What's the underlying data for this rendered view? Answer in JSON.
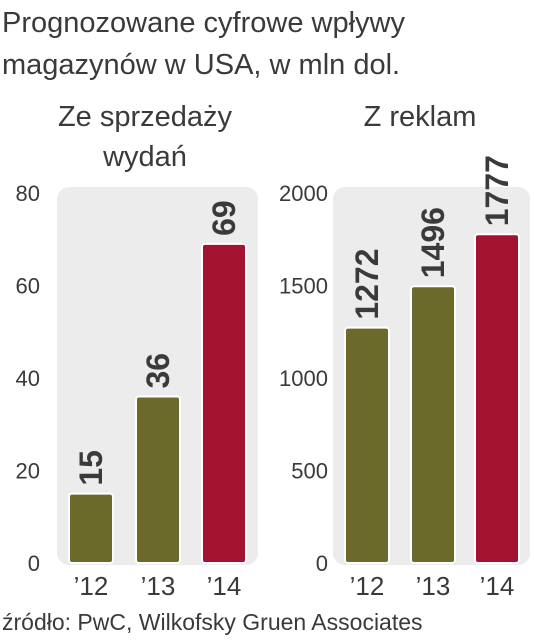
{
  "title": [
    "Prognozowane cyfrowe wpływy",
    "magazynów w USA, w mln dol."
  ],
  "source": "źródło: PwC, Wilkofsky Gruen Associates",
  "chart_data": [
    {
      "type": "bar",
      "subtitle": [
        "Ze sprzedaży",
        "wydań"
      ],
      "categories": [
        "’12",
        "’13",
        "’14"
      ],
      "values": [
        15,
        36,
        69
      ],
      "colors": [
        "#6b6a2b",
        "#6b6a2b",
        "#a3122e"
      ],
      "ylim": [
        0,
        80
      ],
      "yticks": [
        0,
        20,
        40,
        60,
        80
      ]
    },
    {
      "type": "bar",
      "subtitle": [
        "Z reklam"
      ],
      "categories": [
        "’12",
        "’13",
        "’14"
      ],
      "values": [
        1272,
        1496,
        1777
      ],
      "colors": [
        "#6b6a2b",
        "#6b6a2b",
        "#a3122e"
      ],
      "ylim": [
        0,
        2000
      ],
      "yticks": [
        0,
        500,
        1000,
        1500,
        2000
      ]
    }
  ]
}
